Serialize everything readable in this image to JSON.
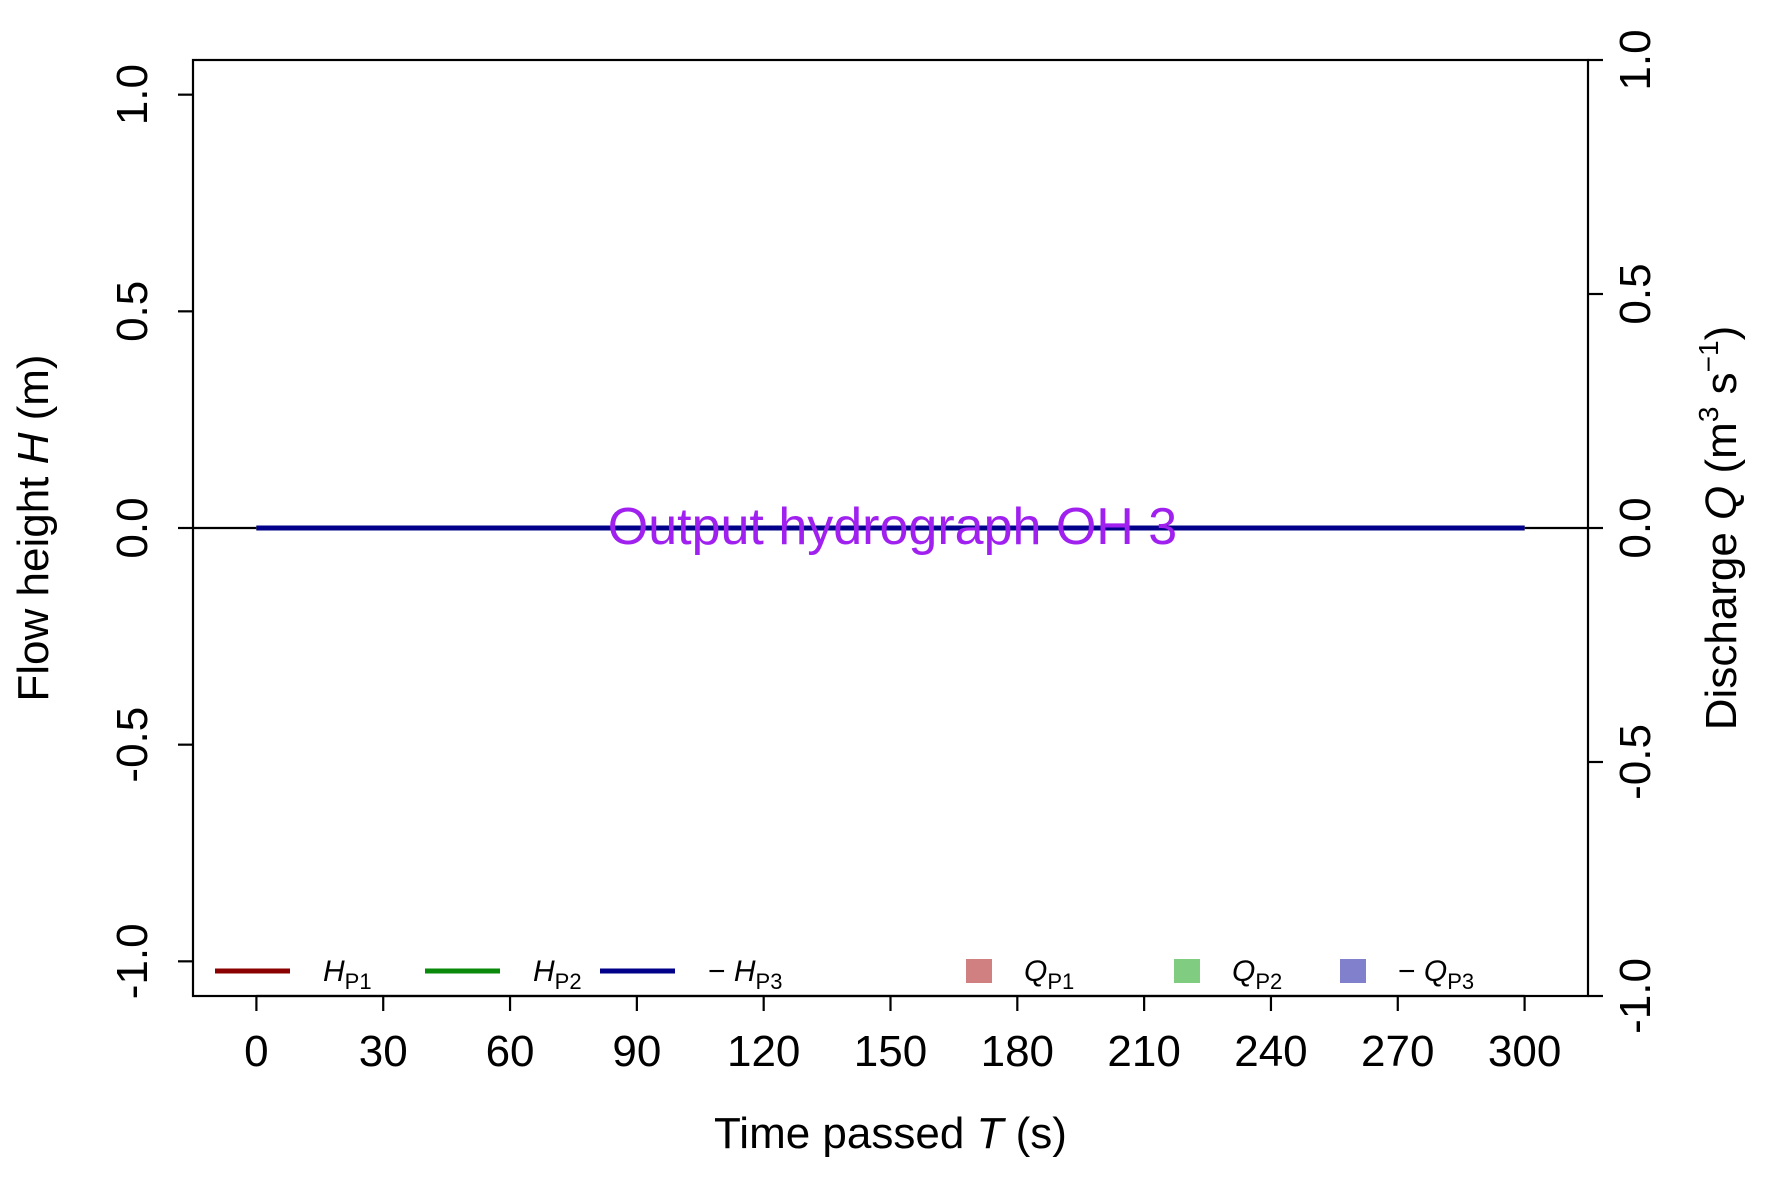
{
  "chart_data": {
    "type": "line",
    "annotation": "Output hydrograph OH 3",
    "colors": {
      "H_P1": "#8b0000",
      "H_P2": "#0a8a0a",
      "H_P3": "#00008b",
      "Q_P1": "#d08080",
      "Q_P2": "#80cc80",
      "Q_P3": "#8080cc",
      "annotation": "#a020f0"
    },
    "x": [
      0,
      300
    ],
    "xticks": [
      0,
      30,
      60,
      90,
      120,
      150,
      180,
      210,
      240,
      270,
      300
    ],
    "xlim": [
      -15,
      315
    ],
    "xlabel": {
      "pre": "Time passed ",
      "var": "T",
      "unit": "s"
    },
    "y_left": {
      "ticks": [
        -1.0,
        -0.5,
        0.0,
        0.5,
        1.0
      ],
      "tick_labels": [
        "-1.0",
        "-0.5",
        "0.0",
        "0.5",
        "1.0"
      ],
      "lim": [
        -1.08,
        1.08
      ],
      "label": {
        "pre": "Flow height ",
        "var": "H",
        "unit": "m"
      }
    },
    "y_right": {
      "ticks": [
        -1.0,
        -0.5,
        0.0,
        0.5,
        1.0
      ],
      "tick_labels": [
        "-1.0",
        "-0.5",
        "0.0",
        "0.5",
        "1.0"
      ],
      "lim": [
        -1.0,
        1.0
      ],
      "label": {
        "pre": "Discharge ",
        "var": "Q",
        "unit_base": "m",
        "unit_exp1": "3",
        "unit_mid": " s",
        "unit_exp2": "−1"
      }
    },
    "series": [
      {
        "name": "H_P1",
        "axis": "left",
        "values": [
          0,
          0
        ]
      },
      {
        "name": "H_P2",
        "axis": "left",
        "values": [
          0,
          0
        ]
      },
      {
        "name": "H_P3",
        "axis": "left",
        "values": [
          0,
          0
        ]
      },
      {
        "name": "Q_P1",
        "axis": "right",
        "values": [
          0,
          0
        ]
      },
      {
        "name": "Q_P2",
        "axis": "right",
        "values": [
          0,
          0
        ]
      },
      {
        "name": "Q_P3",
        "axis": "right",
        "values": [
          0,
          0
        ]
      }
    ],
    "legend": {
      "position": "bottom",
      "items": [
        {
          "key": "H_P1",
          "marker": "line",
          "prefix": "",
          "var": "H",
          "sub": "P1"
        },
        {
          "key": "H_P2",
          "marker": "line",
          "prefix": "",
          "var": "H",
          "sub": "P2"
        },
        {
          "key": "H_P3",
          "marker": "line",
          "prefix": "− ",
          "var": "H",
          "sub": "P3"
        },
        {
          "key": "Q_P1",
          "marker": "square",
          "prefix": "",
          "var": "Q",
          "sub": "P1"
        },
        {
          "key": "Q_P2",
          "marker": "square",
          "prefix": "",
          "var": "Q",
          "sub": "P2"
        },
        {
          "key": "Q_P3",
          "marker": "square",
          "prefix": "− ",
          "var": "Q",
          "sub": "P3"
        }
      ]
    }
  }
}
